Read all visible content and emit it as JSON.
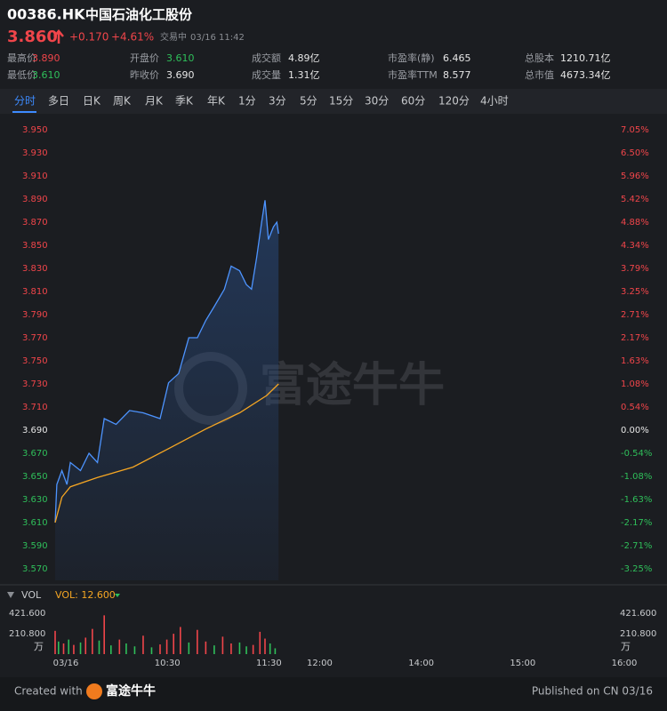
{
  "header": {
    "code": "00386.HK",
    "name": "中国石油化工股份",
    "price": "3.860",
    "change": "+0.170",
    "change_pct": "+4.61%",
    "status": "交易中",
    "time": "03/16 11:42"
  },
  "stats": [
    {
      "label": "最高价",
      "value": "3.890",
      "color": "#f0454a"
    },
    {
      "label": "最低价",
      "value": "3.610",
      "color": "#2fbf5a"
    },
    {
      "label": "开盘价",
      "value": "3.610",
      "color": "#2fbf5a"
    },
    {
      "label": "昨收价",
      "value": "3.690",
      "color": "#e6e6e6"
    },
    {
      "label": "成交额",
      "value": "4.89亿",
      "color": "#e6e6e6"
    },
    {
      "label": "成交量",
      "value": "1.31亿",
      "color": "#e6e6e6"
    },
    {
      "label": "市盈率(静)",
      "value": "6.465",
      "color": "#e6e6e6"
    },
    {
      "label": "市盈率TTM",
      "value": "8.577",
      "color": "#e6e6e6"
    },
    {
      "label": "总股本",
      "value": "1210.71亿",
      "color": "#e6e6e6"
    },
    {
      "label": "总市值",
      "value": "4673.34亿",
      "color": "#e6e6e6"
    }
  ],
  "tabs": [
    "分时",
    "多日",
    "日K",
    "周K",
    "月K",
    "季K",
    "年K",
    "1分",
    "3分",
    "5分",
    "15分",
    "30分",
    "60分",
    "120分",
    "4小时"
  ],
  "chart_data": [
    {
      "type": "line",
      "watermark": "富途牛牛",
      "xlim": [
        0,
        330
      ],
      "xticks": [
        {
          "value": 0,
          "label": "03/16"
        },
        {
          "value": 60,
          "label": "10:30"
        },
        {
          "value": 120,
          "label": "11:30"
        },
        {
          "value": 150,
          "label": "12:00"
        },
        {
          "value": 210,
          "label": "14:00"
        },
        {
          "value": 270,
          "label": "15:00"
        },
        {
          "value": 330,
          "label": "16:00"
        }
      ],
      "ylim": [
        3.56,
        3.96
      ],
      "yticks": [
        {
          "value": 3.95,
          "label": "3.950"
        },
        {
          "value": 3.93,
          "label": "3.930"
        },
        {
          "value": 3.91,
          "label": "3.910"
        },
        {
          "value": 3.89,
          "label": "3.890"
        },
        {
          "value": 3.87,
          "label": "3.870"
        },
        {
          "value": 3.85,
          "label": "3.850"
        },
        {
          "value": 3.83,
          "label": "3.830"
        },
        {
          "value": 3.81,
          "label": "3.810"
        },
        {
          "value": 3.79,
          "label": "3.790"
        },
        {
          "value": 3.77,
          "label": "3.770"
        },
        {
          "value": 3.75,
          "label": "3.750"
        },
        {
          "value": 3.73,
          "label": "3.730"
        },
        {
          "value": 3.71,
          "label": "3.710"
        },
        {
          "value": 3.69,
          "label": "3.690"
        },
        {
          "value": 3.67,
          "label": "3.670"
        },
        {
          "value": 3.65,
          "label": "3.650"
        },
        {
          "value": 3.63,
          "label": "3.630"
        },
        {
          "value": 3.61,
          "label": "3.610"
        },
        {
          "value": 3.59,
          "label": "3.590"
        },
        {
          "value": 3.57,
          "label": "3.570"
        }
      ],
      "y2lim": [
        -3.523,
        7.317
      ],
      "y2ticks": [
        {
          "value": 7.046,
          "label": "7.05%"
        },
        {
          "value": 6.504,
          "label": "6.50%"
        },
        {
          "value": 5.962,
          "label": "5.96%"
        },
        {
          "value": 5.42,
          "label": "5.42%"
        },
        {
          "value": 4.878,
          "label": "4.88%"
        },
        {
          "value": 4.336,
          "label": "4.34%"
        },
        {
          "value": 3.794,
          "label": "3.79%"
        },
        {
          "value": 3.252,
          "label": "3.25%"
        },
        {
          "value": 2.71,
          "label": "2.71%"
        },
        {
          "value": 2.168,
          "label": "2.17%"
        },
        {
          "value": 1.626,
          "label": "1.63%"
        },
        {
          "value": 1.084,
          "label": "1.08%"
        },
        {
          "value": 0.542,
          "label": "0.54%"
        },
        {
          "value": 0,
          "label": "0.00%"
        },
        {
          "value": -0.542,
          "label": "-0.54%"
        },
        {
          "value": -1.084,
          "label": "-1.08%"
        },
        {
          "value": -1.626,
          "label": "-1.63%"
        },
        {
          "value": -2.168,
          "label": "-2.17%"
        },
        {
          "value": -2.71,
          "label": "-2.71%"
        },
        {
          "value": -3.252,
          "label": "-3.25%"
        }
      ],
      "series": [
        {
          "color": "#4d94ff",
          "area": true,
          "x": [
            0,
            1,
            4,
            7,
            9,
            15,
            20,
            25,
            29,
            36,
            44,
            52,
            62,
            67,
            73,
            79,
            84,
            89,
            94,
            100,
            104,
            109,
            113,
            116,
            119,
            122,
            124,
            126,
            129,
            131,
            132
          ],
          "values": [
            3.61,
            3.643,
            3.655,
            3.643,
            3.662,
            3.655,
            3.67,
            3.662,
            3.7,
            3.695,
            3.707,
            3.705,
            3.7,
            3.731,
            3.739,
            3.77,
            3.77,
            3.785,
            3.797,
            3.812,
            3.832,
            3.828,
            3.816,
            3.812,
            3.839,
            3.87,
            3.889,
            3.855,
            3.866,
            3.87,
            3.86
          ]
        },
        {
          "color": "#f5a623",
          "area": false,
          "x": [
            0,
            4,
            9,
            25,
            46,
            67,
            89,
            109,
            125,
            132
          ],
          "values": [
            3.61,
            3.632,
            3.641,
            3.649,
            3.658,
            3.674,
            3.691,
            3.705,
            3.72,
            3.73
          ]
        }
      ]
    },
    {
      "type": "bar",
      "label": "VOL",
      "legend_label": "VOL: 12.600",
      "unit": "万",
      "xlim": [
        0,
        330
      ],
      "ylim": [
        0,
        421.6
      ],
      "yticks": [
        {
          "value": 421.6,
          "label": "421.600"
        },
        {
          "value": 210.8,
          "label": "210.800"
        }
      ],
      "x": [
        0,
        2,
        5,
        8,
        11,
        15,
        18,
        22,
        26,
        29,
        33,
        38,
        42,
        47,
        52,
        57,
        62,
        66,
        70,
        74,
        79,
        84,
        89,
        94,
        99,
        104,
        109,
        113,
        117,
        121,
        124,
        127,
        130
      ],
      "values": [
        240,
        130,
        110,
        150,
        95,
        120,
        170,
        260,
        140,
        400,
        90,
        150,
        110,
        80,
        190,
        70,
        100,
        150,
        210,
        280,
        120,
        250,
        130,
        90,
        180,
        110,
        120,
        80,
        95,
        230,
        160,
        110,
        60
      ],
      "colors": [
        "#f0454a",
        "#2fbf5a",
        "#f0454a",
        "#2fbf5a",
        "#f0454a",
        "#2fbf5a",
        "#f0454a",
        "#f0454a",
        "#2fbf5a",
        "#f0454a",
        "#2fbf5a",
        "#f0454a",
        "#2fbf5a",
        "#2fbf5a",
        "#f0454a",
        "#2fbf5a",
        "#f0454a",
        "#f0454a",
        "#f0454a",
        "#f0454a",
        "#2fbf5a",
        "#f0454a",
        "#f0454a",
        "#2fbf5a",
        "#f0454a",
        "#f0454a",
        "#2fbf5a",
        "#2fbf5a",
        "#f0454a",
        "#f0454a",
        "#f0454a",
        "#2fbf5a",
        "#2fbf5a"
      ]
    }
  ],
  "footer": {
    "created": "Created with",
    "brand": "富途牛牛",
    "published": "Published on CN 03/16"
  }
}
